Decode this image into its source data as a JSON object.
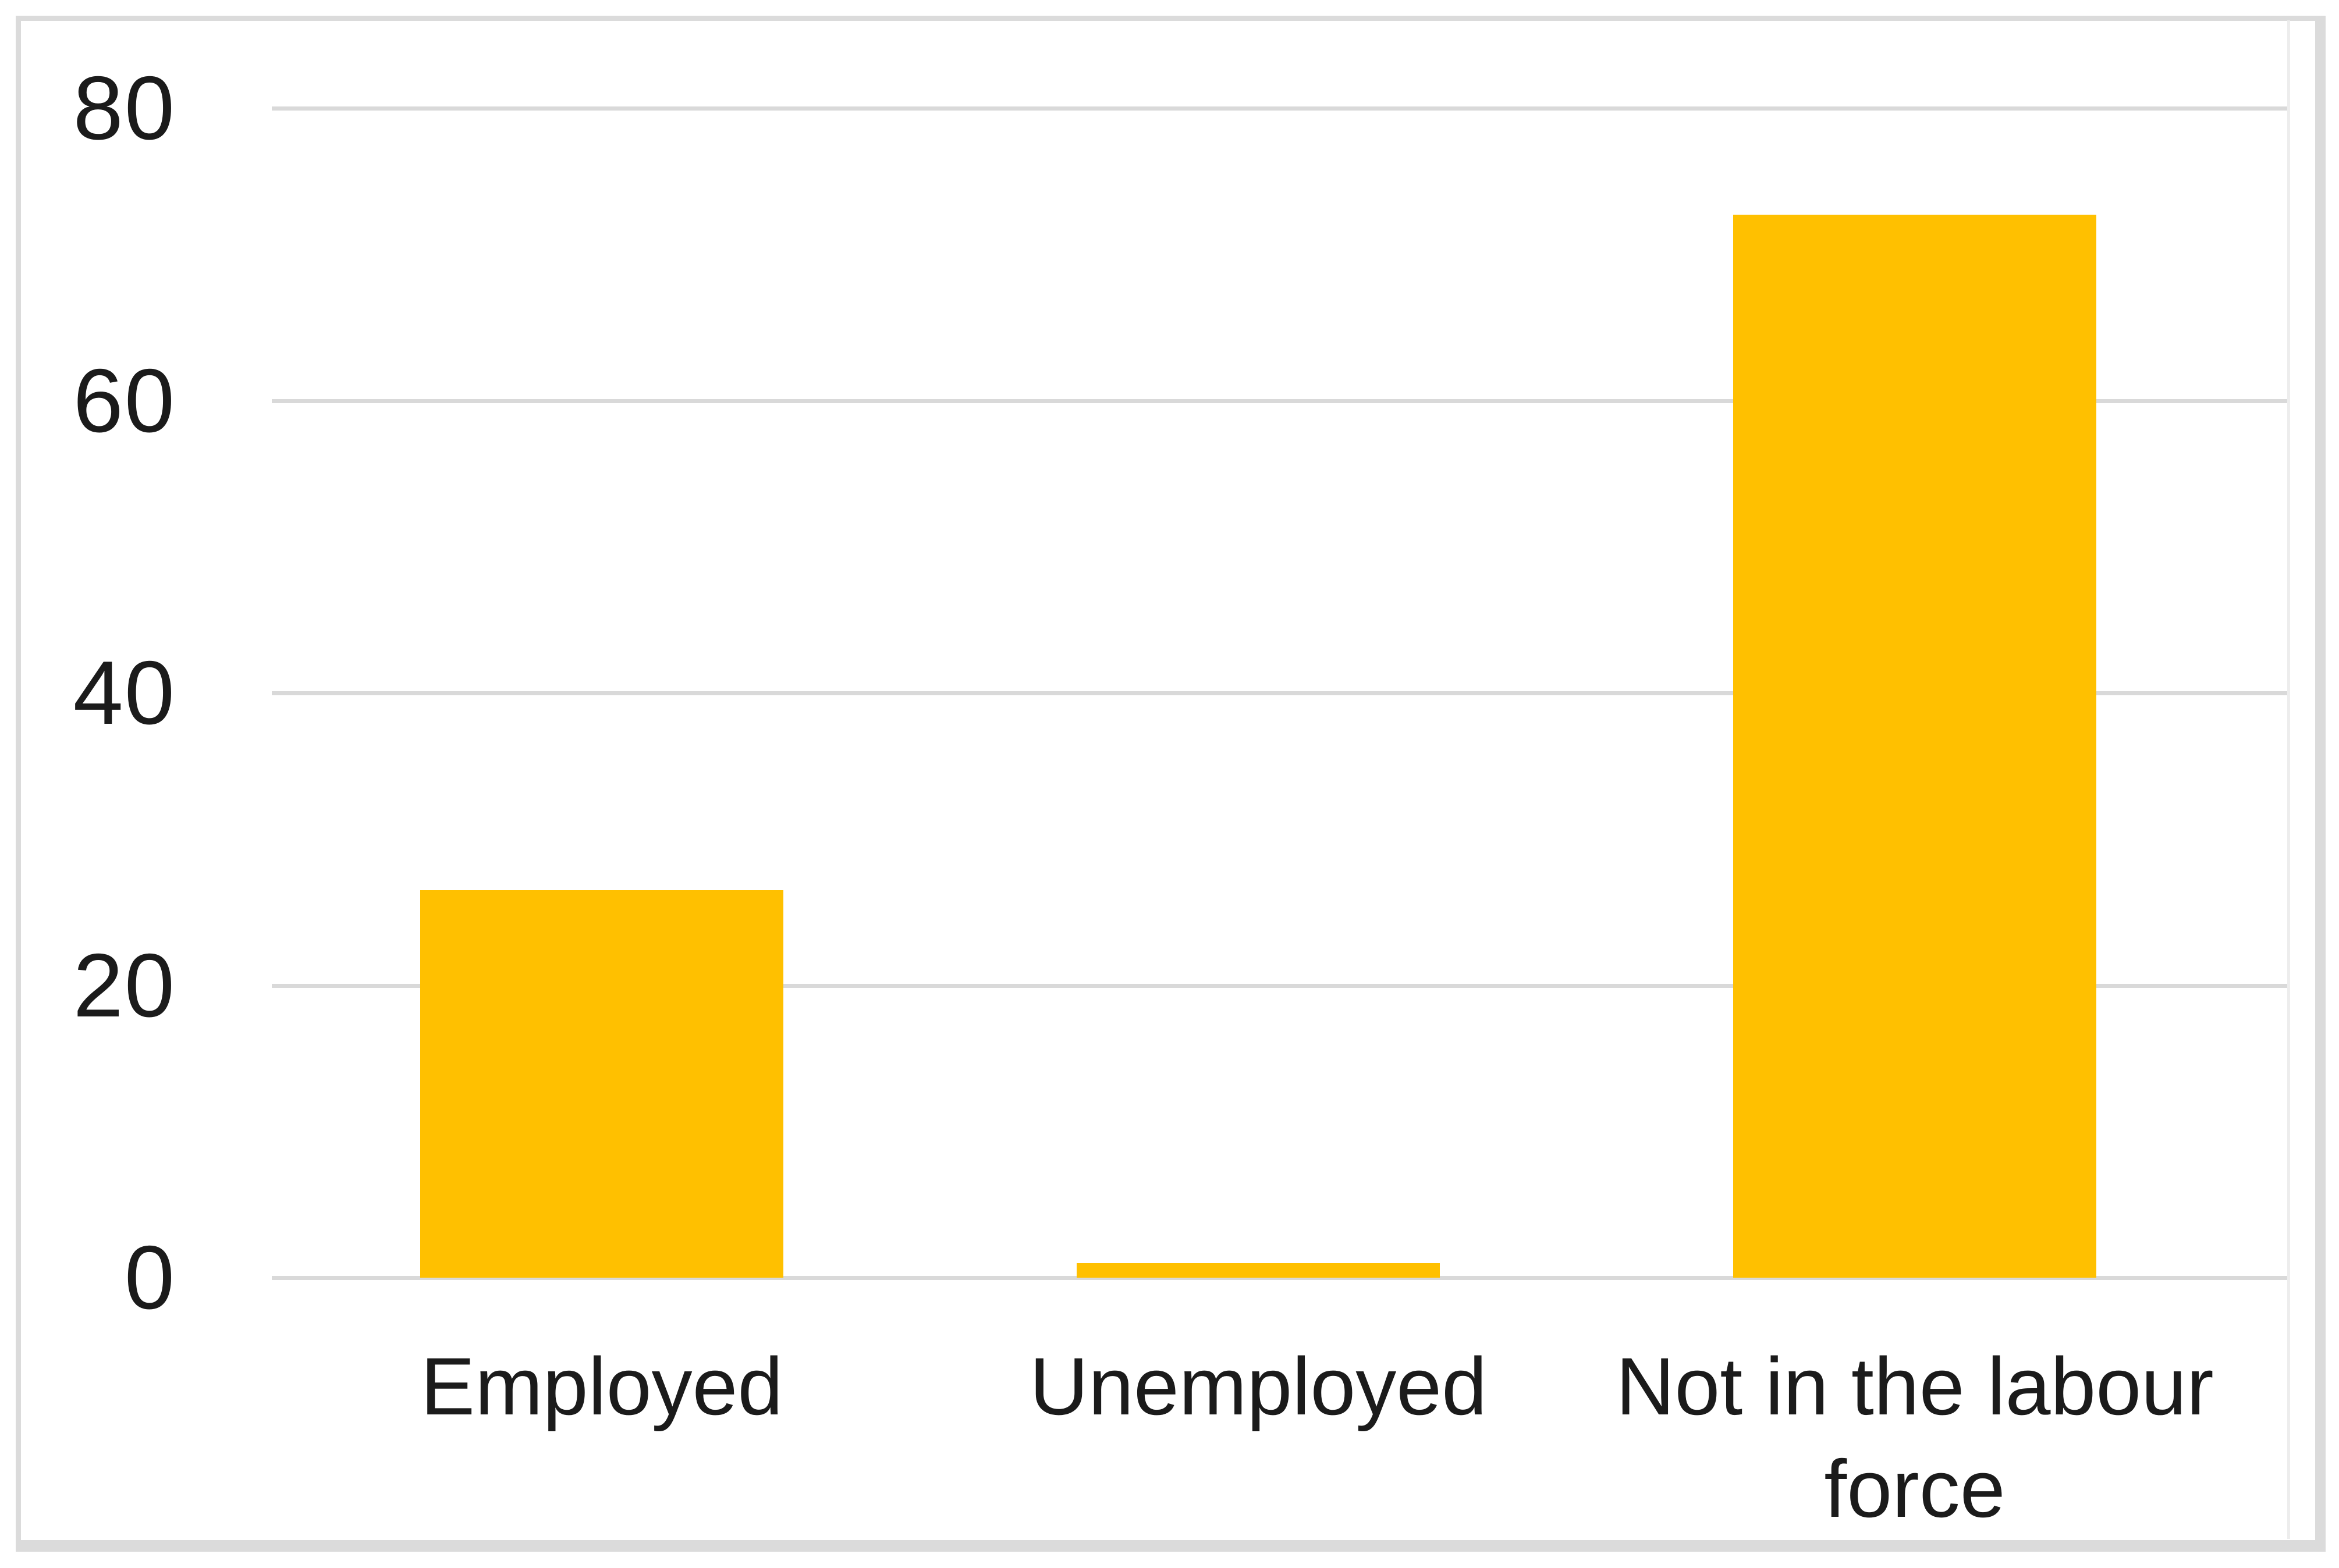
{
  "chart_data": {
    "type": "bar",
    "title": "",
    "xlabel": "",
    "ylabel": "",
    "categories": [
      "Employed",
      "Unemployed",
      "Not in the labour force"
    ],
    "values": [
      26.5,
      1,
      72.7
    ],
    "ylim": [
      0,
      80
    ],
    "yticks": [
      0,
      20,
      40,
      60,
      80
    ],
    "ytick_labels": [
      "0",
      "20",
      "40",
      "60",
      "80"
    ],
    "grid": true,
    "legend_position": "none",
    "bar_color": "#FFC000",
    "gridline_color": "#D9D9D9",
    "axis_text_color": "#1B1B1B",
    "frame_border_color": "#DBDBDB",
    "background_color": "#FFFFFF"
  }
}
